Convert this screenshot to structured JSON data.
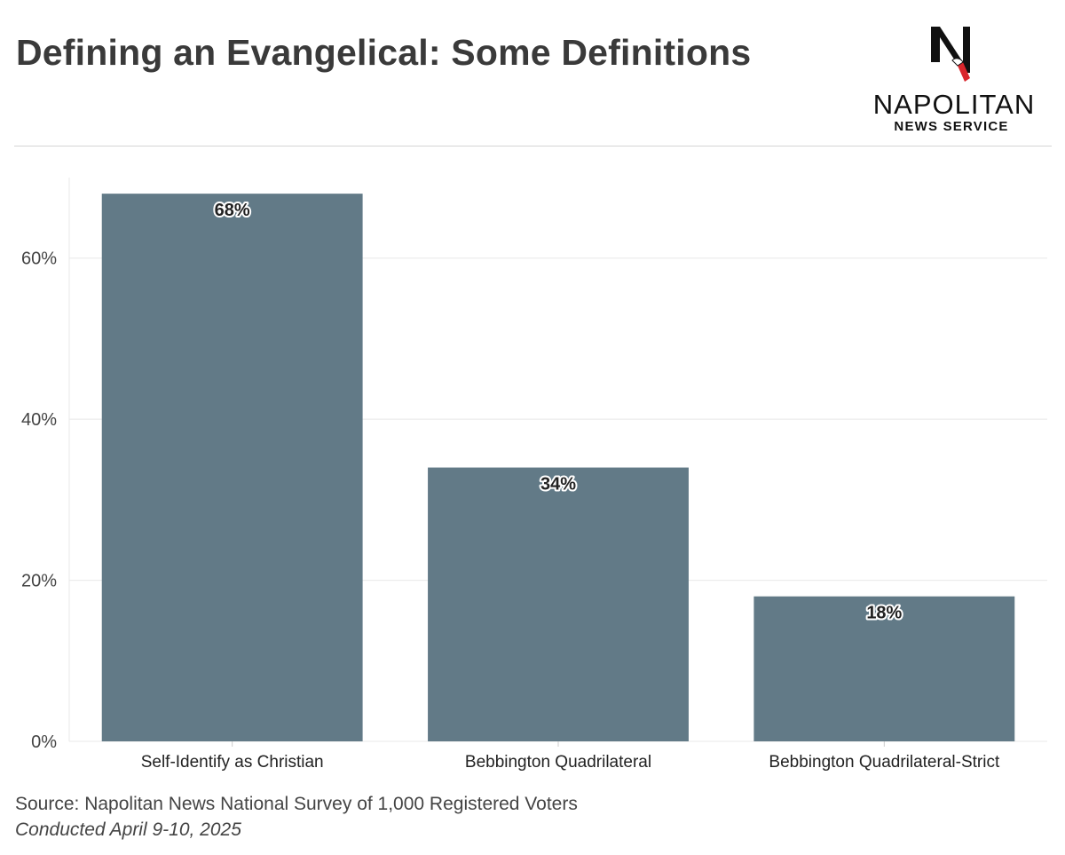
{
  "header": {
    "title": "Defining an Evangelical: Some Definitions"
  },
  "logo": {
    "name": "NAPOLITAN",
    "subtitle": "NEWS SERVICE",
    "mark_letter": "N",
    "colors": {
      "mark": "#111111",
      "accent": "#d9262c"
    }
  },
  "footer": {
    "source": "Source: Napolitan News National Survey of 1,000 Registered Voters",
    "conducted": "Conducted April 9-10, 2025"
  },
  "chart_data": {
    "type": "bar",
    "title": "Defining an Evangelical: Some Definitions",
    "xlabel": "",
    "ylabel": "",
    "categories": [
      "Self-Identify as Christian",
      "Bebbington Quadrilateral",
      "Bebbington Quadrilateral-Strict"
    ],
    "values": [
      68,
      34,
      18
    ],
    "data_labels": [
      "68%",
      "34%",
      "18%"
    ],
    "ylim": [
      0,
      70
    ],
    "yticks": [
      0,
      20,
      40,
      60
    ],
    "ytick_labels": [
      "0%",
      "20%",
      "40%",
      "60%"
    ],
    "grid": true,
    "legend": "none",
    "colors": {
      "bar": "#627a87",
      "grid": "#e8e8e8",
      "axis_text": "#444444"
    }
  }
}
